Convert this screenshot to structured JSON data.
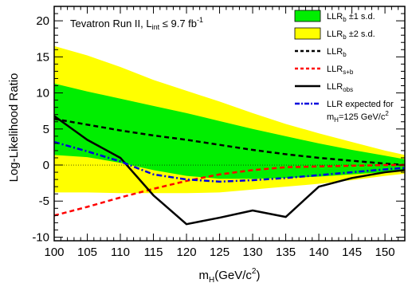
{
  "chart_data": {
    "type": "area",
    "annotation": {
      "main": "Tevatron Run II, L",
      "sub": "int",
      "tail": " ≤ 9.7 fb",
      "sup": "-1"
    },
    "xlabel": {
      "main": "m",
      "sub": "H",
      "unit": "(GeV/c",
      "sup": "2",
      "close": ")"
    },
    "ylabel": "Log-Likelihood Ratio",
    "xlim": [
      100,
      153
    ],
    "ylim": [
      -10.5,
      22
    ],
    "xticks": [
      100,
      105,
      110,
      115,
      120,
      125,
      130,
      135,
      140,
      145,
      150
    ],
    "yticks": [
      -10,
      -5,
      0,
      5,
      10,
      15,
      20
    ],
    "x": [
      100,
      105,
      110,
      115,
      120,
      125,
      130,
      135,
      140,
      145,
      150,
      153
    ],
    "bands": [
      {
        "id": "sd2",
        "color": "#ffff00",
        "upper": [
          16.5,
          15.2,
          13.6,
          11.8,
          10.3,
          8.8,
          7.2,
          5.7,
          4.4,
          3.2,
          2.0,
          1.4
        ],
        "lower": [
          -3.8,
          -3.8,
          -3.9,
          -3.9,
          -3.9,
          -3.8,
          -3.4,
          -3.0,
          -2.6,
          -2.1,
          -1.5,
          -1.2
        ]
      },
      {
        "id": "sd1",
        "color": "#00ee00",
        "upper": [
          11.3,
          10.2,
          9.2,
          8.2,
          7.2,
          6.1,
          5.0,
          4.0,
          3.0,
          2.1,
          1.3,
          0.8
        ],
        "lower": [
          1.4,
          1.1,
          0.3,
          -0.7,
          -1.5,
          -1.9,
          -1.9,
          -1.8,
          -1.6,
          -1.3,
          -1.0,
          -0.8
        ]
      }
    ],
    "series": [
      {
        "id": "llr_b",
        "color": "#000000",
        "dash": "6,4",
        "width": 2.5,
        "x": [
          100,
          105,
          110,
          115,
          120,
          125,
          130,
          135,
          140,
          145,
          150,
          153
        ],
        "y": [
          6.4,
          5.6,
          4.8,
          4.1,
          3.5,
          2.8,
          2.1,
          1.5,
          1.0,
          0.6,
          0.2,
          0.0
        ]
      },
      {
        "id": "llr_sb",
        "color": "#ff0000",
        "dash": "6,4",
        "width": 2.5,
        "x": [
          100,
          105,
          110,
          115,
          120,
          125,
          130,
          135,
          140,
          145,
          150,
          153
        ],
        "y": [
          -7.0,
          -5.8,
          -4.5,
          -3.3,
          -2.2,
          -1.3,
          -0.7,
          -0.3,
          -0.2,
          -0.1,
          0.0,
          0.0
        ]
      },
      {
        "id": "llr_obs",
        "color": "#000000",
        "dash": "",
        "width": 2.5,
        "x": [
          100,
          105,
          110,
          115,
          120,
          125,
          130,
          135,
          140,
          145,
          150,
          153
        ],
        "y": [
          6.8,
          3.5,
          1.0,
          -4.2,
          -8.2,
          -7.3,
          -6.3,
          -7.2,
          -3.0,
          -1.8,
          -1.0,
          -0.7
        ]
      },
      {
        "id": "llr_exp125",
        "color": "#0000dd",
        "dash": "7,3,2,3",
        "width": 2.5,
        "x": [
          100,
          105,
          110,
          115,
          120,
          125,
          130,
          135,
          140,
          145,
          150,
          153
        ],
        "y": [
          3.2,
          1.9,
          0.5,
          -1.3,
          -2.0,
          -2.3,
          -2.1,
          -1.8,
          -1.4,
          -1.0,
          -0.6,
          -0.4
        ]
      }
    ],
    "legend": {
      "placement": "top-right",
      "items": [
        {
          "kind": "box",
          "color": "#00ee00",
          "label": "LLR",
          "sub": "b",
          "extra": " ±1 s.d."
        },
        {
          "kind": "box",
          "color": "#ffff00",
          "label": "LLR",
          "sub": "b",
          "extra": " ±2 s.d."
        },
        {
          "kind": "line",
          "color": "#000000",
          "dash": "4,3",
          "label": "LLR",
          "sub": "b",
          "extra": ""
        },
        {
          "kind": "line",
          "color": "#ff0000",
          "dash": "4,3",
          "label": "LLR",
          "sub": "s+b",
          "extra": ""
        },
        {
          "kind": "line",
          "color": "#000000",
          "dash": "",
          "label": "LLR",
          "sub": "obs",
          "extra": ""
        },
        {
          "kind": "line",
          "color": "#0000dd",
          "dash": "6,2,2,2",
          "label": "LLR expected for",
          "sub": "",
          "extra": "",
          "line2": "m",
          "line2sub": "H",
          "line2tail": "=125 GeV/c",
          "line2sup": "2"
        }
      ]
    }
  }
}
